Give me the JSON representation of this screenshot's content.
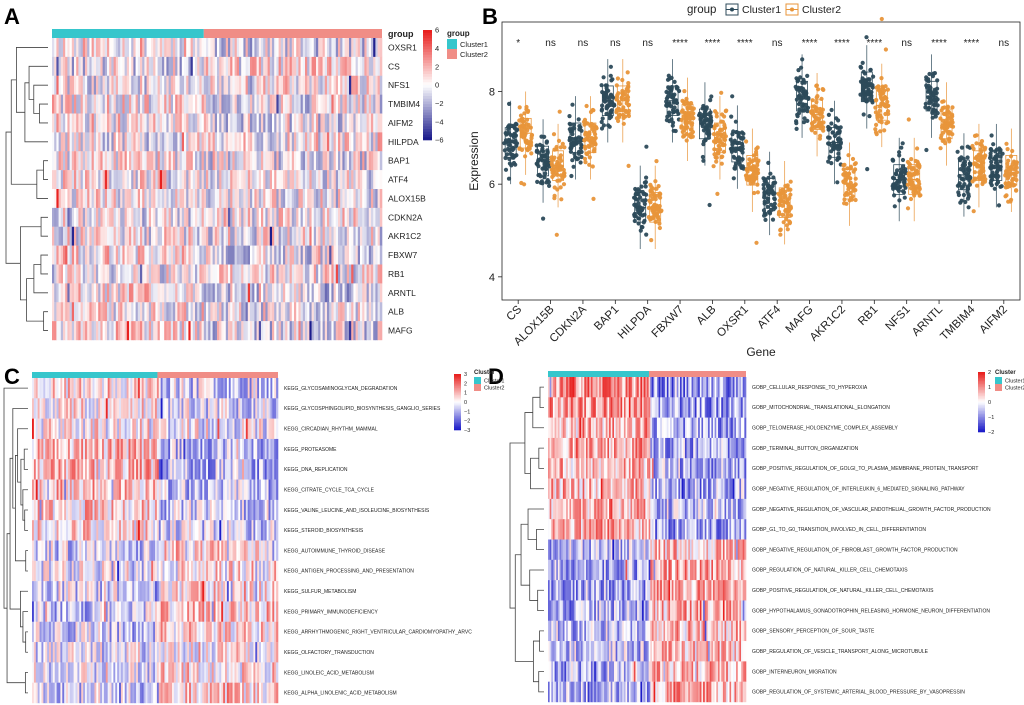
{
  "panel_letters": [
    "A",
    "B",
    "C",
    "D"
  ],
  "chart_data": [
    {
      "id": "A",
      "type": "heatmap",
      "annotation_title": "group",
      "legend_title": "group",
      "groups": [
        "Cluster1",
        "Cluster2"
      ],
      "group_colors": [
        "#36c6cc",
        "#f08d86"
      ],
      "group_fraction_cluster1": 0.46,
      "row_labels": [
        "OXSR1",
        "CS",
        "NFS1",
        "TMBIM4",
        "AIFM2",
        "HILPDA",
        "BAP1",
        "ATF4",
        "ALOX15B",
        "CDKN2A",
        "AKR1C2",
        "FBXW7",
        "RB1",
        "ARNTL",
        "ALB",
        "MAFG"
      ],
      "color_scale": {
        "min": -6,
        "max": 6,
        "ticks": [
          6,
          4,
          2,
          0,
          -2,
          -4,
          -6
        ],
        "low": "#1c1c8c",
        "mid": "#ffffff",
        "high": "#e8201e"
      }
    },
    {
      "id": "B",
      "type": "box-jitter",
      "legend_title": "group",
      "series": [
        {
          "name": "Cluster1",
          "color": "#2c4a5a"
        },
        {
          "name": "Cluster2",
          "color": "#e8953a"
        }
      ],
      "xlabel": "Gene",
      "ylabel": "Expression",
      "ylim": [
        3.5,
        9.5
      ],
      "yticks": [
        4,
        6,
        8
      ],
      "categories": [
        "CS",
        "ALOX15B",
        "CDKN2A",
        "BAP1",
        "HILPDA",
        "FBXW7",
        "ALB",
        "OXSR1",
        "ATF4",
        "MAFG",
        "AKR1C2",
        "RB1",
        "NFS1",
        "ARNTL",
        "TMBIM4",
        "AIFM2"
      ],
      "significance": [
        "*",
        "ns",
        "ns",
        "ns",
        "ns",
        "****",
        "****",
        "****",
        "ns",
        "****",
        "****",
        "****",
        "ns",
        "****",
        "****",
        "ns"
      ],
      "medians_cluster1": [
        6.9,
        6.5,
        7.0,
        7.8,
        5.5,
        7.8,
        7.3,
        6.8,
        5.8,
        7.9,
        6.9,
        8.1,
        6.1,
        7.9,
        6.2,
        6.4
      ],
      "medians_cluster2": [
        7.1,
        6.4,
        7.0,
        7.8,
        5.5,
        7.4,
        7.0,
        6.3,
        5.6,
        7.5,
        6.0,
        7.7,
        6.1,
        7.3,
        6.4,
        6.3
      ]
    },
    {
      "id": "C",
      "type": "heatmap",
      "legend_title": "Cluster",
      "groups": [
        "Cluster1",
        "Cluster2"
      ],
      "group_colors": [
        "#36c6cc",
        "#f08d86"
      ],
      "group_fraction_cluster1": 0.51,
      "row_labels": [
        "KEGG_GLYCOSAMINOGLYCAN_DEGRADATION",
        "KEGG_GLYCOSPHINGOLIPID_BIOSYNTHESIS_GANGLIO_SERIES",
        "KEGG_CIRCADIAN_RHYTHM_MAMMAL",
        "KEGG_PROTEASOME",
        "KEGG_DNA_REPLICATION",
        "KEGG_CITRATE_CYCLE_TCA_CYCLE",
        "KEGG_VALINE_LEUCINE_AND_ISOLEUCINE_BIOSYNTHESIS",
        "KEGG_STEROID_BIOSYNTHESIS",
        "KEGG_AUTOIMMUNE_THYROID_DISEASE",
        "KEGG_ANTIGEN_PROCESSING_AND_PRESENTATION",
        "KEGG_SULFUR_METABOLISM",
        "KEGG_PRIMARY_IMMUNODEFICIENCY",
        "KEGG_ARRHYTHMOGENIC_RIGHT_VENTRICULAR_CARDIOMYOPATHY_ARVC",
        "KEGG_OLFACTORY_TRANSDUCTION",
        "KEGG_LINOLEIC_ACID_METABOLISM",
        "KEGG_ALPHA_LINOLENIC_ACID_METABOLISM"
      ],
      "color_scale": {
        "min": -3,
        "max": 3,
        "ticks": [
          3,
          2,
          1,
          0,
          -1,
          -2,
          -3
        ],
        "low": "#1c1cc8",
        "mid": "#ffffff",
        "high": "#e8201e"
      }
    },
    {
      "id": "D",
      "type": "heatmap",
      "legend_title": "Cluster",
      "groups": [
        "Cluster1",
        "Cluster2"
      ],
      "group_colors": [
        "#36c6cc",
        "#f08d86"
      ],
      "group_fraction_cluster1": 0.51,
      "row_labels": [
        "GOBP_CELLULAR_RESPONSE_TO_HYPEROXIA",
        "GOBP_MITOCHONDRIAL_TRANSLATIONAL_ELONGATION",
        "GOBP_TELOMERASE_HOLOENZYME_COMPLEX_ASSEMBLY",
        "GOBP_TERMINAL_BUTTON_ORGANIZATION",
        "GOBP_POSITIVE_REGULATION_OF_GOLGI_TO_PLASMA_MEMBRANE_PROTEIN_TRANSPORT",
        "GOBP_NEGATIVE_REGULATION_OF_INTERLEUKIN_6_MEDIATED_SIGNALING_PATHWAY",
        "GOBP_NEGATIVE_REGULATION_OF_VASCULAR_ENDOTHELIAL_GROWTH_FACTOR_PRODUCTION",
        "GOBP_G1_TO_G0_TRANSITION_INVOLVED_IN_CELL_DIFFERENTIATION",
        "GOBP_NEGATIVE_REGULATION_OF_FIBROBLAST_GROWTH_FACTOR_PRODUCTION",
        "GOBP_REGULATION_OF_NATURAL_KILLER_CELL_CHEMOTAXIS",
        "GOBP_POSITIVE_REGULATION_OF_NATURAL_KILLER_CELL_CHEMOTAXIS",
        "GOBP_HYPOTHALAMUS_GONADOTROPHIN_RELEASING_HORMONE_NEURON_DIFFERENTIATION",
        "GOBP_SENSORY_PERCEPTION_OF_SOUR_TASTE",
        "GOBP_REGULATION_OF_VESICLE_TRANSPORT_ALONG_MICROTUBULE",
        "GOBP_INTERNEURON_MIGRATION",
        "GOBP_REGULATION_OF_SYSTEMIC_ARTERIAL_BLOOD_PRESSURE_BY_VASOPRESSIN"
      ],
      "color_scale": {
        "min": -2,
        "max": 2,
        "ticks": [
          2,
          1,
          0,
          -1,
          -2
        ],
        "low": "#1c1cc8",
        "mid": "#ffffff",
        "high": "#e8201e"
      }
    }
  ]
}
